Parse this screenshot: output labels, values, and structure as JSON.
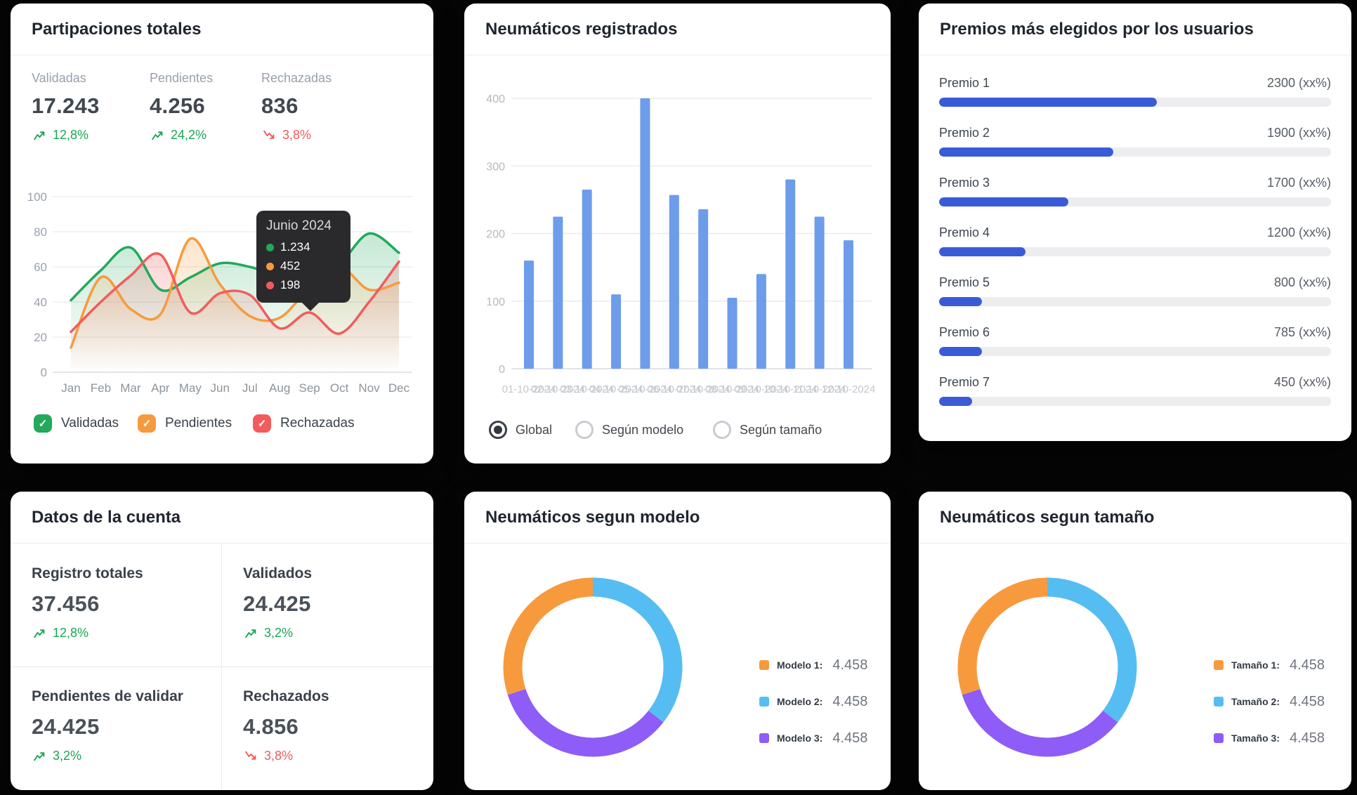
{
  "colors": {
    "green": "#22a95b",
    "orange": "#f79a3e",
    "red": "#f25c5c",
    "bar_blue": "#6d9ceb",
    "progress_blue": "#3a5bd8",
    "donut_blue": "#56bdf2",
    "donut_purple": "#8e5cf6",
    "donut_orange": "#f79a3e",
    "delta_up": "#1ba653",
    "delta_down": "#f15b5b"
  },
  "card1": {
    "title": "Partipaciones totales",
    "stats": [
      {
        "label": "Validadas",
        "value": "17.243",
        "delta": "12,8%",
        "direction": "up"
      },
      {
        "label": "Pendientes",
        "value": "4.256",
        "delta": "24,2%",
        "direction": "up"
      },
      {
        "label": "Rechazadas",
        "value": "836",
        "delta": "3,8%",
        "direction": "down"
      }
    ],
    "tooltip": {
      "title": "Junio 2024",
      "items": [
        {
          "color": "#22a95b",
          "value": "1.234"
        },
        {
          "color": "#f79a3e",
          "value": "452"
        },
        {
          "color": "#f25c5c",
          "value": "198"
        }
      ]
    },
    "legend": [
      {
        "label": "Validadas",
        "color": "#22a95b"
      },
      {
        "label": "Pendientes",
        "color": "#f79a3e"
      },
      {
        "label": "Rechazadas",
        "color": "#f25c5c"
      }
    ]
  },
  "card2": {
    "title": "Neumáticos registrados",
    "radios": [
      {
        "label": "Global",
        "selected": true
      },
      {
        "label": "Según modelo",
        "selected": false
      },
      {
        "label": "Según tamaño",
        "selected": false
      }
    ]
  },
  "card3": {
    "title": "Premios más elegidos por los usuarios",
    "rows": [
      {
        "label": "Premio 1",
        "value": "2300 (xx%)",
        "pct": 55.5
      },
      {
        "label": "Premio 2",
        "value": "1900 (xx%)",
        "pct": 44.5
      },
      {
        "label": "Premio 3",
        "value": "1700 (xx%)",
        "pct": 33
      },
      {
        "label": "Premio 4",
        "value": "1200 (xx%)",
        "pct": 22
      },
      {
        "label": "Premio 5",
        "value": "800 (xx%)",
        "pct": 11
      },
      {
        "label": "Premio 6",
        "value": "785 (xx%)",
        "pct": 11
      },
      {
        "label": "Premio 7",
        "value": "450 (xx%)",
        "pct": 8.5
      }
    ]
  },
  "card4": {
    "title": "Datos de la cuenta",
    "cells": [
      {
        "label": "Registro totales",
        "value": "37.456",
        "delta": "12,8%",
        "direction": "up"
      },
      {
        "label": "Validados",
        "value": "24.425",
        "delta": "3,2%",
        "direction": "up"
      },
      {
        "label": "Pendientes de validar",
        "value": "24.425",
        "delta": "3,2%",
        "direction": "up"
      },
      {
        "label": "Rechazados",
        "value": "4.856",
        "delta": "3,8%",
        "direction": "down"
      }
    ]
  },
  "card5": {
    "title": "Neumáticos segun modelo",
    "legend": [
      {
        "label": "Modelo 1:",
        "value": "4.458",
        "color": "#f79a3e"
      },
      {
        "label": "Modelo 2:",
        "value": "4.458",
        "color": "#56bdf2"
      },
      {
        "label": "Modelo 3:",
        "value": "4.458",
        "color": "#8e5cf6"
      }
    ]
  },
  "card6": {
    "title": "Neumáticos segun tamaño",
    "legend": [
      {
        "label": "Tamaño 1:",
        "value": "4.458",
        "color": "#f79a3e"
      },
      {
        "label": "Tamaño 2:",
        "value": "4.458",
        "color": "#56bdf2"
      },
      {
        "label": "Tamaño 3:",
        "value": "4.458",
        "color": "#8e5cf6"
      }
    ]
  },
  "chart_data": [
    {
      "id": "participaciones-line",
      "type": "line",
      "title": "Partipaciones totales",
      "x": [
        "Jan",
        "Feb",
        "Mar",
        "Apr",
        "May",
        "Jun",
        "Jul",
        "Aug",
        "Sep",
        "Oct",
        "Nov",
        "Dec"
      ],
      "ylim": [
        0,
        100
      ],
      "yticks": [
        0,
        20,
        40,
        60,
        80,
        100
      ],
      "grid": true,
      "series": [
        {
          "name": "Validadas",
          "color": "#22a95b",
          "values": [
            41,
            58,
            71,
            47,
            54,
            62,
            60,
            55,
            58,
            62,
            79,
            68
          ]
        },
        {
          "name": "Pendientes",
          "color": "#f79a3e",
          "values": [
            14,
            54,
            36,
            33,
            76,
            50,
            32,
            31,
            48,
            60,
            47,
            51
          ]
        },
        {
          "name": "Rechazadas",
          "color": "#f25c5c",
          "values": [
            23,
            40,
            55,
            67,
            34,
            45,
            44,
            25,
            34,
            22,
            40,
            63
          ]
        }
      ],
      "tooltip": {
        "label": "Junio 2024",
        "values": [
          1234,
          452,
          198
        ]
      }
    },
    {
      "id": "neumaticos-bar",
      "type": "bar",
      "title": "Neumáticos registrados",
      "categories": [
        "01-10-2024",
        "02-10-2024",
        "03-10-2024",
        "04-10-2024",
        "05-10-2024",
        "06-10-2024",
        "07-10-2024",
        "08-10-2024",
        "09-10-2024",
        "10-10-2024",
        "11-10-2024",
        "12-10-2024"
      ],
      "values": [
        160,
        225,
        265,
        110,
        400,
        257,
        236,
        105,
        140,
        280,
        225,
        190
      ],
      "ylim": [
        0,
        400
      ],
      "yticks": [
        0,
        100,
        200,
        300,
        400
      ],
      "grid": true,
      "bar_color": "#6d9ceb"
    },
    {
      "id": "premios-bars",
      "type": "bar",
      "orientation": "horizontal",
      "title": "Premios más elegidos por los usuarios",
      "categories": [
        "Premio 1",
        "Premio 2",
        "Premio 3",
        "Premio 4",
        "Premio 5",
        "Premio 6",
        "Premio 7"
      ],
      "values": [
        2300,
        1900,
        1700,
        1200,
        800,
        785,
        450
      ],
      "fill_percents": [
        55.5,
        44.5,
        33,
        22,
        11,
        11,
        8.5
      ],
      "bar_color": "#3a5bd8"
    },
    {
      "id": "modelo-donut",
      "type": "pie",
      "title": "Neumáticos segun modelo",
      "labels": [
        "Modelo 1",
        "Modelo 2",
        "Modelo 3"
      ],
      "values": [
        4458,
        4458,
        4458
      ],
      "display_values": [
        "4.458",
        "4.458",
        "4.458"
      ],
      "colors": [
        "#f79a3e",
        "#56bdf2",
        "#8e5cf6"
      ],
      "segments": [
        {
          "color": "#56bdf2",
          "from": 0,
          "to": 128
        },
        {
          "color": "#8e5cf6",
          "from": 128,
          "to": 252
        },
        {
          "color": "#f79a3e",
          "from": 252,
          "to": 360
        }
      ]
    },
    {
      "id": "tamano-donut",
      "type": "pie",
      "title": "Neumáticos segun tamaño",
      "labels": [
        "Tamaño 1",
        "Tamaño 2",
        "Tamaño 3"
      ],
      "values": [
        4458,
        4458,
        4458
      ],
      "display_values": [
        "4.458",
        "4.458",
        "4.458"
      ],
      "colors": [
        "#f79a3e",
        "#56bdf2",
        "#8e5cf6"
      ],
      "segments": [
        {
          "color": "#56bdf2",
          "from": 0,
          "to": 128
        },
        {
          "color": "#8e5cf6",
          "from": 128,
          "to": 252
        },
        {
          "color": "#f79a3e",
          "from": 252,
          "to": 360
        }
      ]
    }
  ]
}
